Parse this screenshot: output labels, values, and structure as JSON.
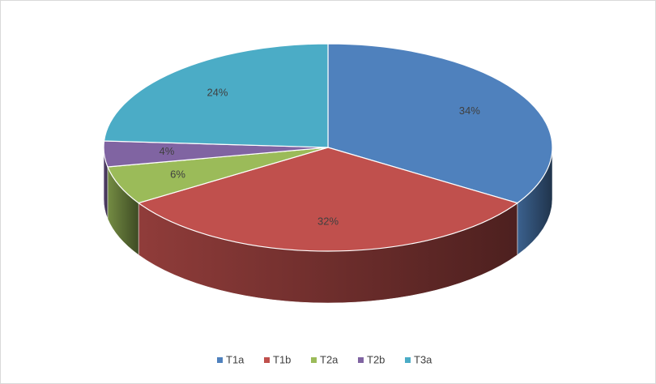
{
  "chart_data": {
    "type": "pie",
    "categories": [
      "T1a",
      "T1b",
      "T2a",
      "T2b",
      "T3a"
    ],
    "values": [
      34,
      32,
      6,
      4,
      24
    ],
    "value_labels": [
      "34%",
      "32%",
      "6%",
      "4%",
      "24%"
    ],
    "colors": [
      "#4f81bd",
      "#c0504d",
      "#9bbb59",
      "#8064a2",
      "#4bacc6"
    ],
    "legend": "bottom"
  }
}
